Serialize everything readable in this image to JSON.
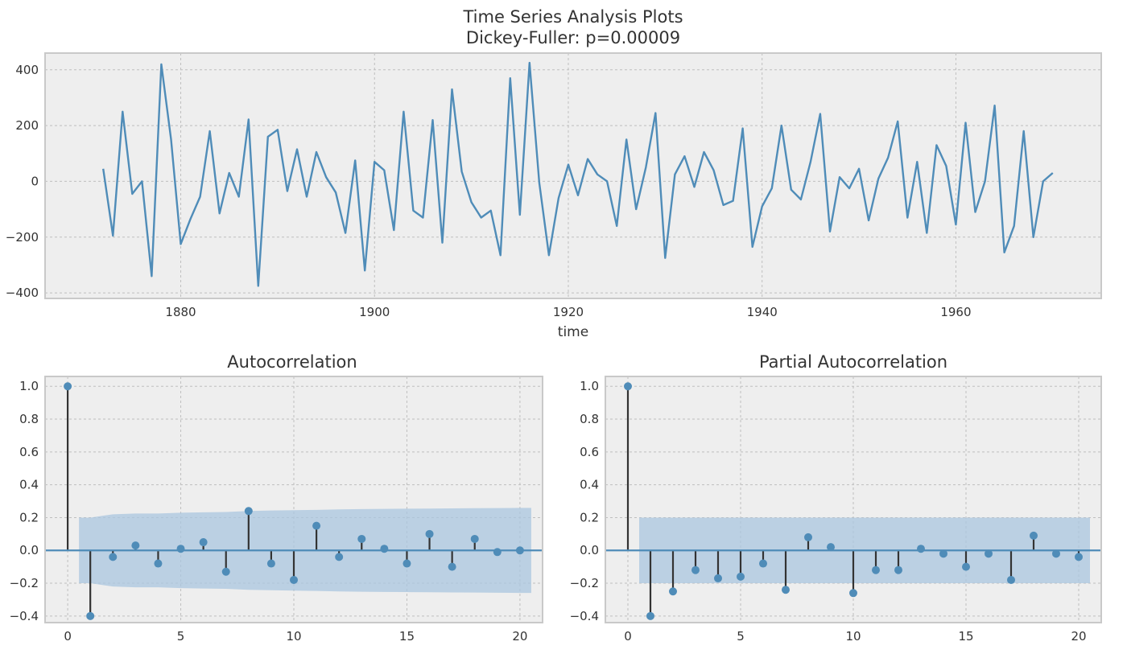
{
  "figure": {
    "title": "Time Series Analysis Plots",
    "subtitle": "Dickey-Fuller: p=0.00009"
  },
  "colors": {
    "background": "#eeeeee",
    "grid": "#bfbfbf",
    "frame": "#c9c9c9",
    "series": "#4f8cb8",
    "stem": "#333333",
    "confidence_band": "#a9c6df",
    "zero_line": "#4f8cb8",
    "text": "#333333"
  },
  "chart_data": [
    {
      "type": "line",
      "title": "Time Series Analysis Plots",
      "subtitle": "Dickey-Fuller: p=0.00009",
      "xlabel": "time",
      "ylabel": "",
      "xlim": [
        1866,
        1975
      ],
      "ylim": [
        -420,
        460
      ],
      "xticks": [
        1880,
        1900,
        1920,
        1940,
        1960
      ],
      "yticks": [
        -400,
        -200,
        0,
        200,
        400
      ],
      "grid": true,
      "x_start": 1872,
      "x_step": 1,
      "values": [
        45,
        -195,
        250,
        -45,
        0,
        -340,
        420,
        150,
        -225,
        -135,
        -55,
        180,
        -115,
        30,
        -55,
        222,
        -375,
        160,
        185,
        -35,
        115,
        -55,
        105,
        15,
        -40,
        -185,
        75,
        -320,
        70,
        40,
        -175,
        250,
        -105,
        -130,
        220,
        -220,
        330,
        35,
        -75,
        -130,
        -105,
        -265,
        370,
        -120,
        425,
        -5,
        -265,
        -60,
        60,
        -50,
        80,
        25,
        0,
        -160,
        150,
        -100,
        50,
        245,
        -275,
        25,
        90,
        -20,
        105,
        40,
        -85,
        -70,
        190,
        -235,
        -90,
        -25,
        200,
        -30,
        -65,
        70,
        242,
        -180,
        15,
        -25,
        45,
        -140,
        10,
        85,
        215,
        -130,
        70,
        -185,
        130,
        55,
        -155,
        210,
        -110,
        0,
        272,
        -255,
        -160,
        180,
        -200,
        0,
        30
      ]
    },
    {
      "type": "stem",
      "title": "Autocorrelation",
      "xlabel": "",
      "ylabel": "",
      "xlim": [
        -1,
        21
      ],
      "ylim": [
        -0.44,
        1.06
      ],
      "xticks": [
        0,
        5,
        10,
        15,
        20
      ],
      "yticks": [
        -0.4,
        -0.2,
        0.0,
        0.2,
        0.4,
        0.6,
        0.8,
        1.0
      ],
      "grid": true,
      "lags": [
        0,
        1,
        2,
        3,
        4,
        5,
        6,
        7,
        8,
        9,
        10,
        11,
        12,
        13,
        14,
        15,
        16,
        17,
        18,
        19,
        20
      ],
      "values": [
        1.0,
        -0.4,
        -0.04,
        0.03,
        -0.08,
        0.01,
        0.05,
        -0.13,
        0.24,
        -0.08,
        -0.18,
        0.15,
        -0.04,
        0.07,
        0.01,
        -0.08,
        0.1,
        -0.1,
        0.07,
        -0.01,
        0.0
      ],
      "confidence_upper": [
        0.2,
        0.2,
        0.22,
        0.225,
        0.225,
        0.23,
        0.232,
        0.234,
        0.24,
        0.243,
        0.245,
        0.247,
        0.25,
        0.252,
        0.253,
        0.254,
        0.255,
        0.256,
        0.257,
        0.258,
        0.259
      ]
    },
    {
      "type": "stem",
      "title": "Partial Autocorrelation",
      "xlabel": "",
      "ylabel": "",
      "xlim": [
        -1,
        21
      ],
      "ylim": [
        -0.44,
        1.06
      ],
      "xticks": [
        0,
        5,
        10,
        15,
        20
      ],
      "yticks": [
        -0.4,
        -0.2,
        0.0,
        0.2,
        0.4,
        0.6,
        0.8,
        1.0
      ],
      "grid": true,
      "lags": [
        0,
        1,
        2,
        3,
        4,
        5,
        6,
        7,
        8,
        9,
        10,
        11,
        12,
        13,
        14,
        15,
        16,
        17,
        18,
        19,
        20
      ],
      "values": [
        1.0,
        -0.4,
        -0.25,
        -0.12,
        -0.17,
        -0.16,
        -0.08,
        -0.24,
        0.08,
        0.02,
        -0.26,
        -0.12,
        -0.12,
        0.01,
        -0.02,
        -0.1,
        -0.02,
        -0.18,
        0.09,
        -0.02,
        -0.04
      ],
      "confidence_upper": [
        0.2,
        0.2,
        0.2,
        0.2,
        0.2,
        0.2,
        0.2,
        0.2,
        0.2,
        0.2,
        0.2,
        0.2,
        0.2,
        0.2,
        0.2,
        0.2,
        0.2,
        0.2,
        0.2,
        0.2,
        0.2
      ]
    }
  ]
}
